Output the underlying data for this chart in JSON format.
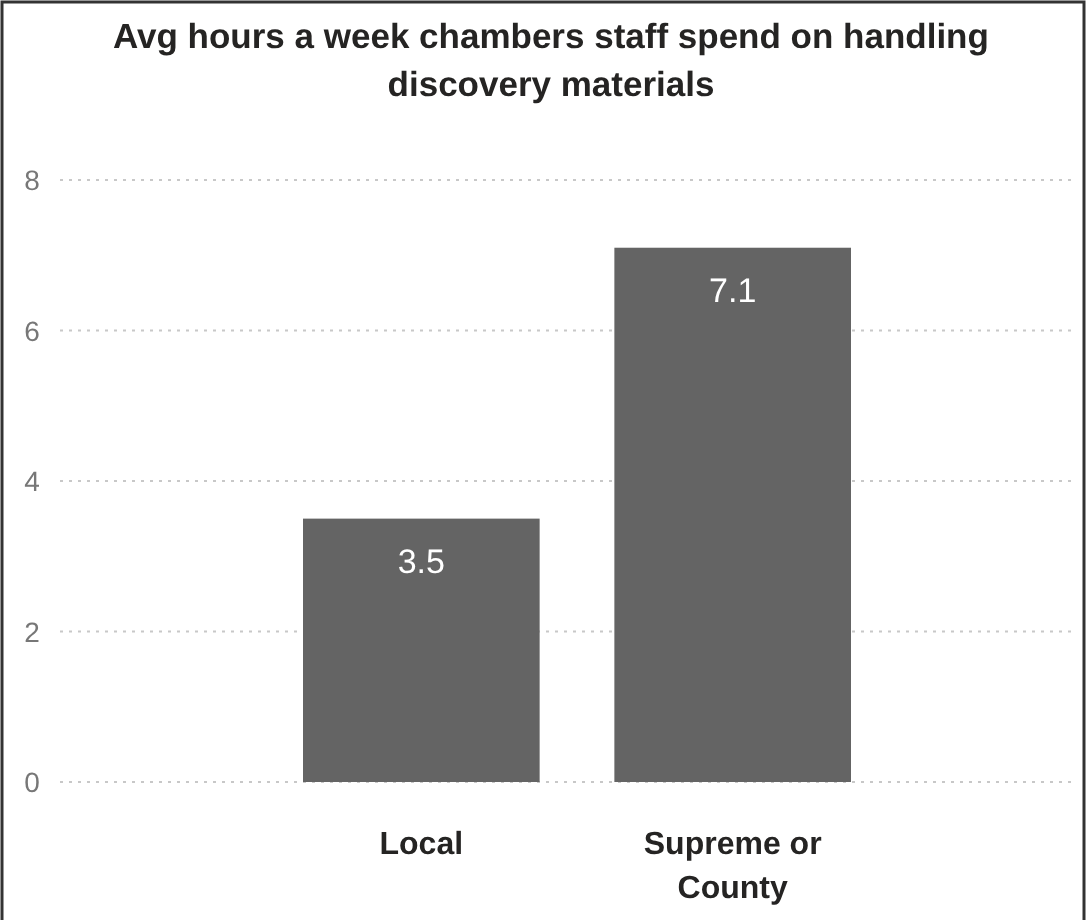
{
  "chart_data": {
    "type": "bar",
    "title": "Avg hours a week chambers staff spend on handling discovery materials",
    "categories": [
      "Local",
      "Supreme or County"
    ],
    "values": [
      3.5,
      7.1
    ],
    "color": "#646464",
    "ylim": [
      0,
      8
    ],
    "yticks": [
      0,
      2,
      4,
      6,
      8
    ],
    "grid": "y",
    "data_labels": true
  }
}
